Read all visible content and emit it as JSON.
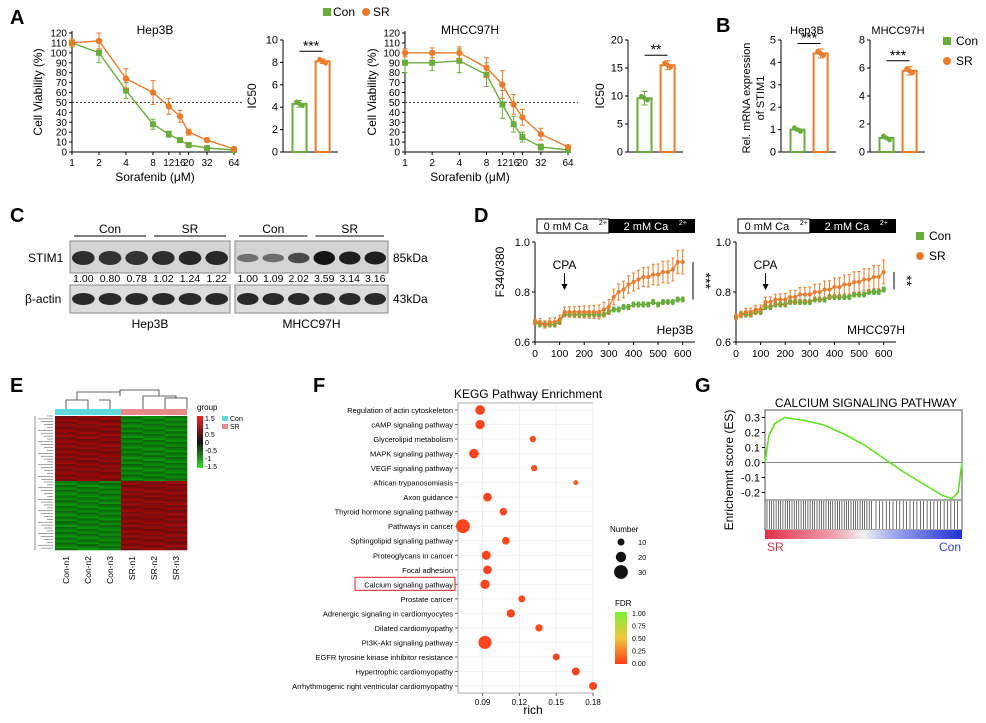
{
  "panels": {
    "A": {
      "label": "A",
      "legend": {
        "con": "Con",
        "sr": "SR"
      },
      "colors": {
        "con": "#6aac3c",
        "sr": "#e87b2c"
      },
      "curves": [
        {
          "title": "Hep3B",
          "ylabel": "Cell Viability (%)",
          "xlabel": "Sorafenib (μM)",
          "xticks": [
            "1",
            "2",
            "4",
            "8",
            "12",
            "16",
            "20",
            "32",
            "64"
          ],
          "yticks": [
            "0",
            "10",
            "20",
            "30",
            "40",
            "50",
            "60",
            "70",
            "80",
            "90",
            "100",
            "110",
            "120"
          ],
          "chart_data": {
            "type": "line",
            "x": [
              1,
              2,
              4,
              8,
              12,
              16,
              20,
              32,
              64
            ],
            "series": [
              {
                "name": "Con",
                "values": [
                  110,
                  100,
                  62,
                  28,
                  18,
                  12,
                  7,
                  4,
                  2
                ],
                "errors": [
                  4,
                  10,
                  8,
                  5,
                  3,
                  2,
                  2,
                  1,
                  1
                ]
              },
              {
                "name": "SR",
                "values": [
                  110,
                  112,
                  74,
                  60,
                  46,
                  36,
                  20,
                  12,
                  3
                ],
                "errors": [
                  4,
                  8,
                  10,
                  12,
                  8,
                  6,
                  3,
                  2,
                  1
                ]
              }
            ],
            "ylim": [
              0,
              120
            ],
            "reference_line": 50
          }
        },
        {
          "title": "MHCC97H",
          "ylabel": "Cell Viability (%)",
          "xlabel": "Sorafenib (μM)",
          "xticks": [
            "1",
            "2",
            "4",
            "8",
            "12",
            "16",
            "20",
            "32",
            "64"
          ],
          "yticks": [
            "0",
            "10",
            "20",
            "30",
            "40",
            "50",
            "60",
            "70",
            "80",
            "90",
            "100",
            "110",
            "120"
          ],
          "chart_data": {
            "type": "line",
            "x": [
              1,
              2,
              4,
              8,
              12,
              16,
              20,
              32,
              64
            ],
            "series": [
              {
                "name": "Con",
                "values": [
                  90,
                  90,
                  92,
                  78,
                  48,
                  28,
                  15,
                  5,
                  2
                ],
                "errors": [
                  10,
                  8,
                  12,
                  12,
                  14,
                  8,
                  5,
                  3,
                  1
                ]
              },
              {
                "name": "SR",
                "values": [
                  100,
                  100,
                  100,
                  85,
                  68,
                  48,
                  35,
                  18,
                  5
                ],
                "errors": [
                  4,
                  5,
                  6,
                  10,
                  14,
                  10,
                  8,
                  6,
                  2
                ]
              }
            ],
            "ylim": [
              0,
              120
            ],
            "reference_line": 50
          }
        }
      ],
      "ic50": [
        {
          "ylabel": "IC50",
          "yticks": [
            "0",
            "2",
            "4",
            "6",
            "8",
            "10"
          ],
          "sig": "***",
          "chart_data": {
            "type": "bar",
            "categories": [
              "Con",
              "SR"
            ],
            "values": [
              4.3,
              8.1
            ],
            "errors": [
              0.3,
              0.2
            ],
            "ylim": [
              0,
              10
            ]
          }
        },
        {
          "ylabel": "IC50",
          "yticks": [
            "0",
            "5",
            "10",
            "15",
            "20"
          ],
          "sig": "**",
          "chart_data": {
            "type": "bar",
            "categories": [
              "Con",
              "SR"
            ],
            "values": [
              9.6,
              15.5
            ],
            "errors": [
              1.2,
              0.8
            ],
            "ylim": [
              0,
              20
            ]
          }
        }
      ]
    },
    "B": {
      "label": "B",
      "ylabel_line1": "Rel. mRNA expression",
      "ylabel_line2": "of STIM1",
      "legend": {
        "con": "Con",
        "sr": "SR"
      },
      "charts": [
        {
          "title": "Hep3B",
          "yticks": [
            "0",
            "1",
            "2",
            "3",
            "4",
            "5"
          ],
          "sig": "***",
          "chart_data": {
            "type": "bar",
            "categories": [
              "Con",
              "SR"
            ],
            "values": [
              1.0,
              4.4
            ],
            "errors": [
              0.05,
              0.2
            ],
            "ylim": [
              0,
              5
            ]
          }
        },
        {
          "title": "MHCC97H",
          "yticks": [
            "0",
            "2",
            "4",
            "6",
            "8"
          ],
          "sig": "***",
          "chart_data": {
            "type": "bar",
            "categories": [
              "Con",
              "SR"
            ],
            "values": [
              1.0,
              5.8
            ],
            "errors": [
              0.05,
              0.3
            ],
            "ylim": [
              0,
              8
            ]
          }
        }
      ]
    },
    "C": {
      "label": "C",
      "row_labels": [
        "STIM1",
        "β-actin"
      ],
      "kda": [
        "85kDa",
        "43kDa"
      ],
      "blots": [
        {
          "cell": "Hep3B",
          "groups": [
            "Con",
            "SR"
          ],
          "values": [
            "1.00",
            "0.80",
            "0.78",
            "1.02",
            "1.24",
            "1.22"
          ]
        },
        {
          "cell": "MHCC97H",
          "groups": [
            "Con",
            "SR"
          ],
          "values": [
            "1.00",
            "1.09",
            "2.02",
            "3.59",
            "3.14",
            "3.16"
          ]
        }
      ]
    },
    "D": {
      "label": "D",
      "ylabel": "F340/380",
      "bar_left": "0 mM Ca",
      "bar_right": "2 mM Ca",
      "superscript": "2+",
      "annotation": "CPA",
      "legend": {
        "con": "Con",
        "sr": "SR"
      },
      "xticks": [
        "0",
        "100",
        "200",
        "300",
        "400",
        "500",
        "600"
      ],
      "yticks": [
        "0.6",
        "0.8",
        "1.0"
      ],
      "charts": [
        {
          "cell": "Hep3B",
          "sig": "***",
          "chart_data": {
            "type": "line",
            "x": [
              0,
              20,
              40,
              60,
              80,
              100,
              120,
              140,
              160,
              180,
              200,
              220,
              240,
              260,
              280,
              300,
              320,
              340,
              360,
              380,
              400,
              420,
              440,
              460,
              480,
              500,
              520,
              540,
              560,
              580,
              600
            ],
            "series": [
              {
                "name": "Con",
                "values": [
                  0.68,
                  0.67,
                  0.67,
                  0.67,
                  0.67,
                  0.68,
                  0.71,
                  0.71,
                  0.71,
                  0.71,
                  0.71,
                  0.71,
                  0.71,
                  0.71,
                  0.71,
                  0.72,
                  0.73,
                  0.73,
                  0.74,
                  0.74,
                  0.75,
                  0.75,
                  0.75,
                  0.75,
                  0.76,
                  0.75,
                  0.76,
                  0.76,
                  0.76,
                  0.77,
                  0.77
                ]
              },
              {
                "name": "SR",
                "values": [
                  0.68,
                  0.68,
                  0.67,
                  0.68,
                  0.68,
                  0.69,
                  0.72,
                  0.72,
                  0.72,
                  0.72,
                  0.72,
                  0.72,
                  0.72,
                  0.72,
                  0.73,
                  0.74,
                  0.78,
                  0.8,
                  0.81,
                  0.83,
                  0.84,
                  0.85,
                  0.86,
                  0.86,
                  0.87,
                  0.87,
                  0.88,
                  0.88,
                  0.89,
                  0.92,
                  0.92
                ]
              }
            ],
            "ylim": [
              0.6,
              1.0
            ],
            "xlim": [
              0,
              650
            ]
          }
        },
        {
          "cell": "MHCC97H",
          "sig": "**",
          "chart_data": {
            "type": "line",
            "x": [
              0,
              20,
              40,
              60,
              80,
              100,
              120,
              140,
              160,
              180,
              200,
              220,
              240,
              260,
              280,
              300,
              320,
              340,
              360,
              380,
              400,
              420,
              440,
              460,
              480,
              500,
              520,
              540,
              560,
              580,
              600
            ],
            "series": [
              {
                "name": "Con",
                "values": [
                  0.7,
                  0.71,
                  0.71,
                  0.71,
                  0.72,
                  0.72,
                  0.74,
                  0.74,
                  0.75,
                  0.75,
                  0.75,
                  0.76,
                  0.76,
                  0.76,
                  0.76,
                  0.76,
                  0.77,
                  0.77,
                  0.77,
                  0.78,
                  0.78,
                  0.78,
                  0.78,
                  0.78,
                  0.79,
                  0.79,
                  0.79,
                  0.8,
                  0.8,
                  0.8,
                  0.81
                ]
              },
              {
                "name": "SR",
                "values": [
                  0.7,
                  0.71,
                  0.72,
                  0.72,
                  0.73,
                  0.73,
                  0.76,
                  0.76,
                  0.77,
                  0.77,
                  0.77,
                  0.78,
                  0.78,
                  0.79,
                  0.79,
                  0.79,
                  0.8,
                  0.8,
                  0.81,
                  0.81,
                  0.82,
                  0.82,
                  0.83,
                  0.83,
                  0.84,
                  0.84,
                  0.85,
                  0.85,
                  0.86,
                  0.86,
                  0.88
                ]
              }
            ],
            "ylim": [
              0.6,
              1.0
            ],
            "xlim": [
              0,
              650
            ]
          }
        }
      ]
    },
    "E": {
      "label": "E",
      "legend_title": "group",
      "groups": [
        "Con",
        "SR"
      ],
      "group_colors": [
        "#5fd8d8",
        "#e88a8a"
      ],
      "scale_ticks": [
        "1.5",
        "1",
        "0.5",
        "0",
        "-0.5",
        "-1",
        "-1.5"
      ],
      "columns": [
        "Con-n1",
        "Con-n2",
        "Con-n3",
        "SR-n1",
        "SR-n2",
        "SR-n3"
      ],
      "chart_data": {
        "type": "heatmap",
        "columns": [
          "Con-n1",
          "Con-n2",
          "Con-n3",
          "SR-n1",
          "SR-n2",
          "SR-n3"
        ],
        "range": [
          -1.5,
          1.5
        ]
      }
    },
    "F": {
      "label": "F",
      "title": "KEGG Pathway Enrichment",
      "xlabel": "rich",
      "xticks": [
        "0.09",
        "0.12",
        "0.15",
        "0.18"
      ],
      "size_title": "Number",
      "size_ticks": [
        "10",
        "20",
        "30"
      ],
      "color_title": "FDR",
      "color_ticks": [
        "1.00",
        "0.75",
        "0.50",
        "0.25",
        "0.00"
      ],
      "highlight": "Calcium signaling pathway",
      "chart_data": {
        "type": "scatter",
        "xlim": [
          0.07,
          0.18
        ],
        "pathways": [
          {
            "name": "Regulation of actin cytoskeleton",
            "rich": 0.088,
            "number": 18,
            "fdr": 0.05
          },
          {
            "name": "cAMP signaling pathway",
            "rich": 0.088,
            "number": 17,
            "fdr": 0.05
          },
          {
            "name": "Glycerolipid metabolism",
            "rich": 0.131,
            "number": 8,
            "fdr": 0.12
          },
          {
            "name": "MAPK signaling pathway",
            "rich": 0.083,
            "number": 18,
            "fdr": 0.05
          },
          {
            "name": "VEGF signaling pathway",
            "rich": 0.132,
            "number": 8,
            "fdr": 0.12
          },
          {
            "name": "African trypanosomiasis",
            "rich": 0.166,
            "number": 4,
            "fdr": 0.25
          },
          {
            "name": "Axon guidance",
            "rich": 0.094,
            "number": 15,
            "fdr": 0.06
          },
          {
            "name": "Thyroid hormone signaling pathway",
            "rich": 0.107,
            "number": 12,
            "fdr": 0.08
          },
          {
            "name": "Pathways in cancer",
            "rich": 0.074,
            "number": 30,
            "fdr": 0.04
          },
          {
            "name": "Sphingolipid signaling pathway",
            "rich": 0.109,
            "number": 12,
            "fdr": 0.08
          },
          {
            "name": "Proteoglycans in cancer",
            "rich": 0.093,
            "number": 16,
            "fdr": 0.06
          },
          {
            "name": "Focal adhesion",
            "rich": 0.094,
            "number": 15,
            "fdr": 0.06
          },
          {
            "name": "Calcium signaling pathway",
            "rich": 0.092,
            "number": 17,
            "fdr": 0.06
          },
          {
            "name": "Prostate cancer",
            "rich": 0.122,
            "number": 10,
            "fdr": 0.1
          },
          {
            "name": "Adrenergic signaling in cardiomyocytes",
            "rich": 0.113,
            "number": 14,
            "fdr": 0.06
          },
          {
            "name": "Dilated cardiomyopathy",
            "rich": 0.136,
            "number": 11,
            "fdr": 0.08
          },
          {
            "name": "PI3K-Akt signaling pathway",
            "rich": 0.092,
            "number": 28,
            "fdr": 0.04
          },
          {
            "name": "EGFR tyrosine kinase inhibitor resistance",
            "rich": 0.15,
            "number": 10,
            "fdr": 0.08
          },
          {
            "name": "Hypertrophic cardiomyopathy",
            "rich": 0.166,
            "number": 13,
            "fdr": 0.05
          },
          {
            "name": "Arrhythmogenic right ventricular cardiomyopathy",
            "rich": 0.18,
            "number": 13,
            "fdr": 0.04
          }
        ]
      }
    },
    "G": {
      "label": "G",
      "title": "CALCIUM SIGNALING PATHWAY",
      "ylabel": "Enrichemnt score (ES)",
      "yticks": [
        "0.3",
        "0.2",
        "0.1",
        "0.0",
        "-0.1",
        "-0.2"
      ],
      "left_label": "SR",
      "right_label": "Con",
      "chart_data": {
        "type": "line",
        "x": [
          0,
          0.02,
          0.05,
          0.1,
          0.15,
          0.2,
          0.3,
          0.4,
          0.5,
          0.6,
          0.7,
          0.8,
          0.85,
          0.9,
          0.95,
          0.98,
          1.0
        ],
        "values": [
          0,
          0.18,
          0.26,
          0.3,
          0.29,
          0.28,
          0.25,
          0.19,
          0.12,
          0.03,
          -0.06,
          -0.14,
          -0.18,
          -0.22,
          -0.24,
          -0.2,
          0
        ],
        "ylim": [
          -0.25,
          0.35
        ]
      }
    }
  }
}
